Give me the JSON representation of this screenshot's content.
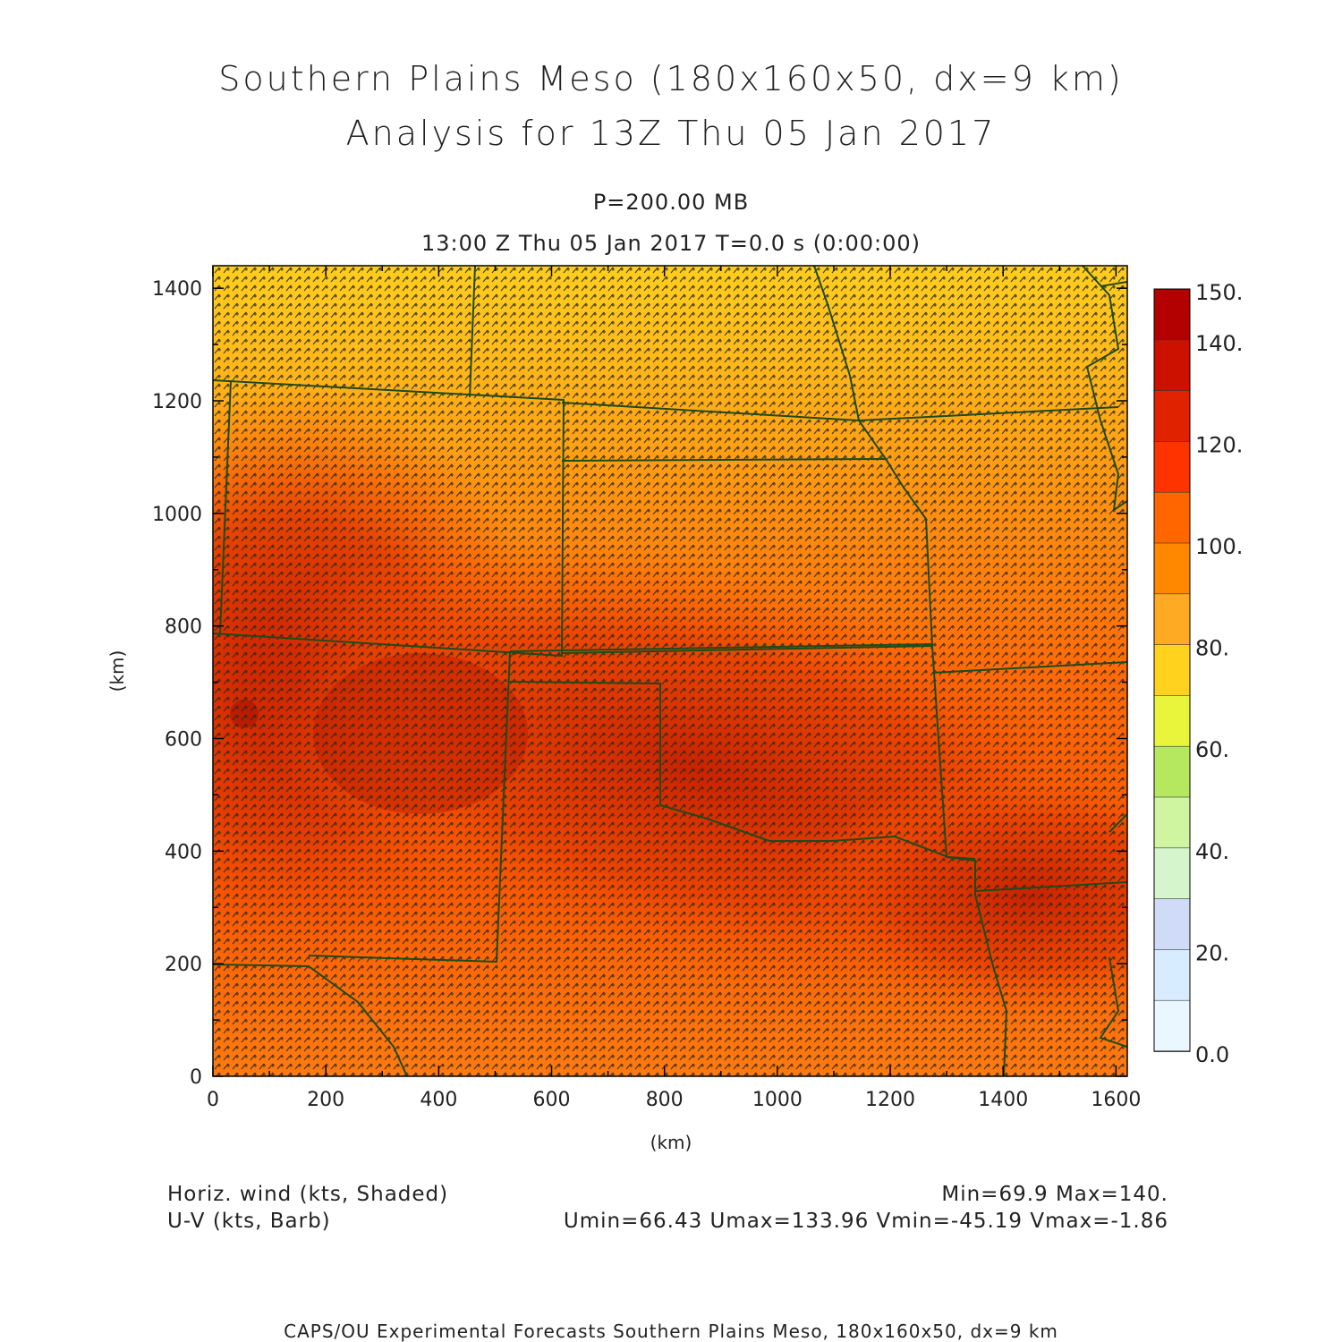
{
  "header": {
    "title_line1": "Southern Plains Meso (180x160x50, dx=9 km)",
    "title_line2": "Analysis for 13Z Thu 05 Jan 2017",
    "level": "P=200.00 MB",
    "time": "13:00 Z Thu 05 Jan 2017    T=0.0 s (0:00:00)"
  },
  "plot": {
    "x_label": "(km)",
    "y_label": "(km)",
    "x_ticks": [
      "0",
      "200",
      "400",
      "600",
      "800",
      "1000",
      "1200",
      "1400",
      "1600"
    ],
    "y_ticks": [
      "0",
      "200",
      "400",
      "600",
      "800",
      "1000",
      "1200",
      "1400"
    ],
    "x_range": [
      0,
      1620
    ],
    "y_range": [
      0,
      1440
    ]
  },
  "colorbar": {
    "labels": [
      "150.",
      "140.",
      "120.",
      "100.",
      "80.",
      "60.",
      "40.",
      "20.",
      "0.0"
    ],
    "colors": [
      "#b30000",
      "#cc1100",
      "#e02200",
      "#ff3300",
      "#ff6600",
      "#ff8800",
      "#ffaa22",
      "#ffd21e",
      "#e8f53a",
      "#b5e85e",
      "#cff5a0",
      "#d5f5cc",
      "#d0dcf7",
      "#d8ecff",
      "#eaf7ff"
    ]
  },
  "footer": {
    "field1": "Horiz. wind (kts, Shaded)",
    "field2": "U-V (kts, Barb)",
    "minmax": "Min=69.9 Max=140.",
    "uv_minmax": "Umin=66.43 Umax=133.96 Vmin=-45.19 Vmax=-1.86",
    "credit": "CAPS/OU Experimental Forecasts  Southern Plains Meso, 180x160x50, dx=9 km"
  }
}
